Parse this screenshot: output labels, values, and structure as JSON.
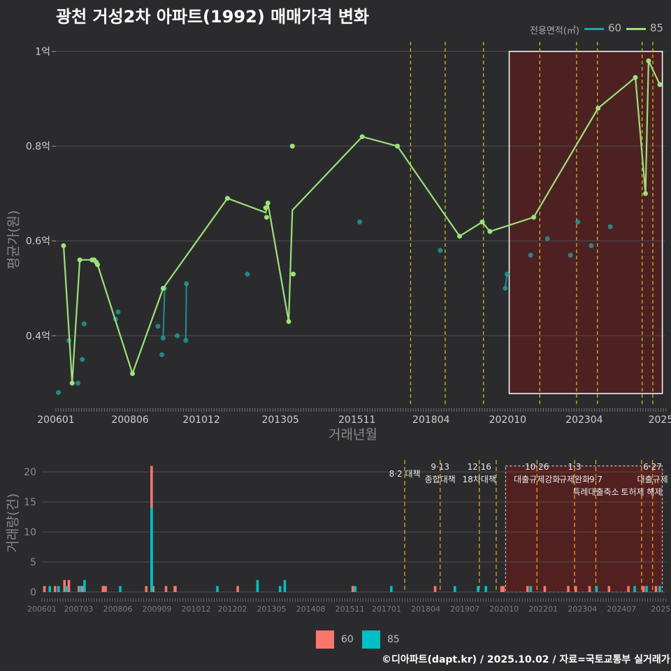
{
  "title": "광천 거성2차 아파트(1992) 매매가격 변화",
  "legend": {
    "title": "전용면적(㎡)",
    "items": [
      {
        "label": "60",
        "color": "#1fa7a4"
      },
      {
        "label": "85",
        "color": "#9be27a"
      }
    ]
  },
  "credit": "©디아파트(dapt.kr) / 2025.10.02 / 자료=국토교통부 실거래가",
  "chart_data": [
    {
      "type": "line",
      "title": "광천 거성2차 아파트(1992) 매매가격 변화",
      "xlabel": "거래년월",
      "ylabel": "평균가(원)",
      "ylim": [
        0.25,
        1.02
      ],
      "xlim": [
        2006.0,
        2025.9
      ],
      "yticks": [
        {
          "v": 0.4,
          "label": "0.4억"
        },
        {
          "v": 0.6,
          "label": "0.6억"
        },
        {
          "v": 0.8,
          "label": "0.8억"
        },
        {
          "v": 1.0,
          "label": "1억"
        }
      ],
      "xticks": [
        {
          "v": 2006.0,
          "label": "200601"
        },
        {
          "v": 2008.42,
          "label": "200806"
        },
        {
          "v": 2010.75,
          "label": "201012"
        },
        {
          "v": 2013.33,
          "label": "201305"
        },
        {
          "v": 2015.83,
          "label": "201511"
        },
        {
          "v": 2018.25,
          "label": "201804"
        },
        {
          "v": 2020.75,
          "label": "202010"
        },
        {
          "v": 2023.25,
          "label": "202304"
        },
        {
          "v": 2025.75,
          "label": "2025"
        }
      ],
      "policy_lines": [
        2017.58,
        2018.71,
        2019.96,
        2021.8,
        2023.0,
        2023.68,
        2025.14,
        2025.49
      ],
      "highlight": {
        "x0": 2020.8,
        "x1": 2025.8,
        "y0": 0.278,
        "y1": 1.0
      },
      "series": [
        {
          "name": "60",
          "color": "#1fa7a4",
          "x": [
            2006.08,
            2006.42,
            2006.72,
            2006.86,
            2006.92,
            2007.95,
            2008.03,
            2009.33,
            2009.46,
            2009.5,
            2009.55,
            2009.96,
            2010.24,
            2010.26,
            2012.25,
            2015.92,
            2018.55,
            2020.67,
            2020.73,
            2021.5,
            2022.05,
            2022.8,
            2023.04,
            2023.48,
            2024.1
          ],
          "y": [
            0.28,
            0.39,
            0.3,
            0.35,
            0.425,
            0.435,
            0.45,
            0.42,
            0.36,
            0.395,
            0.5,
            0.4,
            0.39,
            0.51,
            0.53,
            0.64,
            0.58,
            0.5,
            0.53,
            0.57,
            0.605,
            0.57,
            0.64,
            0.59,
            0.63
          ],
          "line_x": [
            2009.5,
            2009.55,
            null,
            2010.24,
            2010.26,
            null,
            2020.67,
            2020.73
          ],
          "line_y": [
            0.395,
            0.5,
            null,
            0.39,
            0.51,
            null,
            0.5,
            0.53
          ]
        },
        {
          "name": "85",
          "color": "#9be27a",
          "x": [
            2006.25,
            2006.53,
            2006.78,
            2007.18,
            2007.25,
            2007.32,
            2007.36,
            2008.5,
            2009.5,
            2011.6,
            2012.85,
            2012.88,
            2012.92,
            2013.6,
            2013.72,
            2013.75,
            2016.0,
            2017.15,
            2019.18,
            2019.92,
            2020.17,
            2021.6,
            2023.7,
            2024.92,
            2025.25,
            2025.35,
            2025.72
          ],
          "y": [
            0.59,
            0.3,
            0.56,
            0.56,
            0.56,
            0.555,
            0.55,
            0.32,
            0.5,
            0.69,
            0.67,
            0.65,
            0.68,
            0.43,
            0.8,
            0.53,
            0.82,
            0.8,
            0.61,
            0.64,
            0.62,
            0.65,
            0.88,
            0.945,
            0.7,
            0.98,
            0.93
          ],
          "line_x": [
            2006.25,
            2006.53,
            2006.78,
            2007.22,
            2007.36,
            2008.5,
            2009.5,
            2011.6,
            2012.85,
            2012.92,
            2013.6,
            2013.72,
            2016.0,
            2017.15,
            2019.18,
            2019.92,
            2020.17,
            2021.6,
            2023.7,
            2024.92,
            2025.25,
            2025.35,
            2025.72
          ],
          "line_y": [
            0.59,
            0.3,
            0.56,
            0.56,
            0.55,
            0.32,
            0.5,
            0.69,
            0.66,
            0.68,
            0.43,
            0.665,
            0.82,
            0.8,
            0.61,
            0.64,
            0.62,
            0.65,
            0.88,
            0.945,
            0.7,
            0.98,
            0.93
          ]
        }
      ]
    },
    {
      "type": "bar",
      "title": "거래량",
      "xlabel": "",
      "ylabel": "거래량(건)",
      "ylim": [
        0,
        22
      ],
      "xlim": [
        2006.0,
        2025.9
      ],
      "yticks": [
        0,
        5,
        10,
        15,
        20
      ],
      "xticks": [
        {
          "v": 2006.0,
          "label": "200601"
        },
        {
          "v": 2007.17,
          "label": "200703"
        },
        {
          "v": 2008.42,
          "label": "200806"
        },
        {
          "v": 2009.67,
          "label": "200909"
        },
        {
          "v": 2010.92,
          "label": "201012"
        },
        {
          "v": 2012.08,
          "label": "201202"
        },
        {
          "v": 2013.33,
          "label": "201305"
        },
        {
          "v": 2014.58,
          "label": "201408"
        },
        {
          "v": 2015.83,
          "label": "201511"
        },
        {
          "v": 2017.0,
          "label": "201701"
        },
        {
          "v": 2018.25,
          "label": "201804"
        },
        {
          "v": 2019.5,
          "label": "201907"
        },
        {
          "v": 2020.75,
          "label": "202010"
        },
        {
          "v": 2022.0,
          "label": "202201"
        },
        {
          "v": 2023.25,
          "label": "202304"
        },
        {
          "v": 2024.5,
          "label": "202407"
        },
        {
          "v": 2025.75,
          "label": "2025"
        }
      ],
      "policy_lines": [
        2017.58,
        2018.71,
        2019.96,
        2020.5,
        2021.8,
        2023.0,
        2023.68,
        2025.14,
        2025.49
      ],
      "highlight": {
        "x0": 2020.8,
        "x1": 2025.8,
        "y0": 0,
        "y1": 21
      },
      "annotations": [
        {
          "x": 2017.58,
          "line1": "",
          "line2": "8·2 대책"
        },
        {
          "x": 2018.71,
          "line1": "9·13",
          "line2": "종합대책"
        },
        {
          "x": 2019.96,
          "line1": "12·16",
          "line2": "18차대책"
        },
        {
          "x": 2021.8,
          "line1": "10·26",
          "line2": "대출규제강화"
        },
        {
          "x": 2023.0,
          "line1": "1·3",
          "line2": "규제완화"
        },
        {
          "x": 2023.68,
          "line1": "",
          "line2": "9·7"
        },
        {
          "x": 2023.68,
          "line1": "",
          "line2": "특례대출축소"
        },
        {
          "x": 2025.14,
          "line1": "",
          "line2": "토허제 해제"
        },
        {
          "x": 2025.49,
          "line1": "6·27",
          "line2": "대출규제"
        }
      ],
      "series": [
        {
          "name": "60",
          "color": "#f8766d",
          "x": [
            2006.08,
            2006.42,
            2006.72,
            2006.86,
            2007.18,
            2007.3,
            2007.95,
            2008.03,
            2009.33,
            2009.5,
            2009.55,
            2009.96,
            2010.24,
            2010.26,
            2012.25,
            2015.92,
            2018.55,
            2020.67,
            2020.73,
            2021.5,
            2022.05,
            2022.8,
            2023.04,
            2023.48,
            2024.1,
            2024.72,
            2025.2,
            2025.6
          ],
          "y": [
            1,
            1,
            2,
            2,
            1,
            1,
            1,
            1,
            1,
            7,
            1,
            1,
            1,
            1,
            1,
            1,
            1,
            1,
            1,
            1,
            1,
            1,
            1,
            1,
            1,
            1,
            1,
            1
          ]
        },
        {
          "name": "85",
          "color": "#00bfc4",
          "x": [
            2006.25,
            2006.53,
            2006.78,
            2007.22,
            2007.36,
            2008.5,
            2009.5,
            2011.6,
            2012.88,
            2013.6,
            2013.75,
            2016.0,
            2017.15,
            2019.18,
            2019.92,
            2020.17,
            2021.6,
            2023.7,
            2024.92,
            2025.3,
            2025.72
          ],
          "y": [
            1,
            1,
            1,
            1,
            2,
            1,
            14,
            1,
            2,
            1,
            2,
            1,
            1,
            1,
            1,
            1,
            1,
            1,
            1,
            1,
            1
          ]
        }
      ]
    }
  ]
}
